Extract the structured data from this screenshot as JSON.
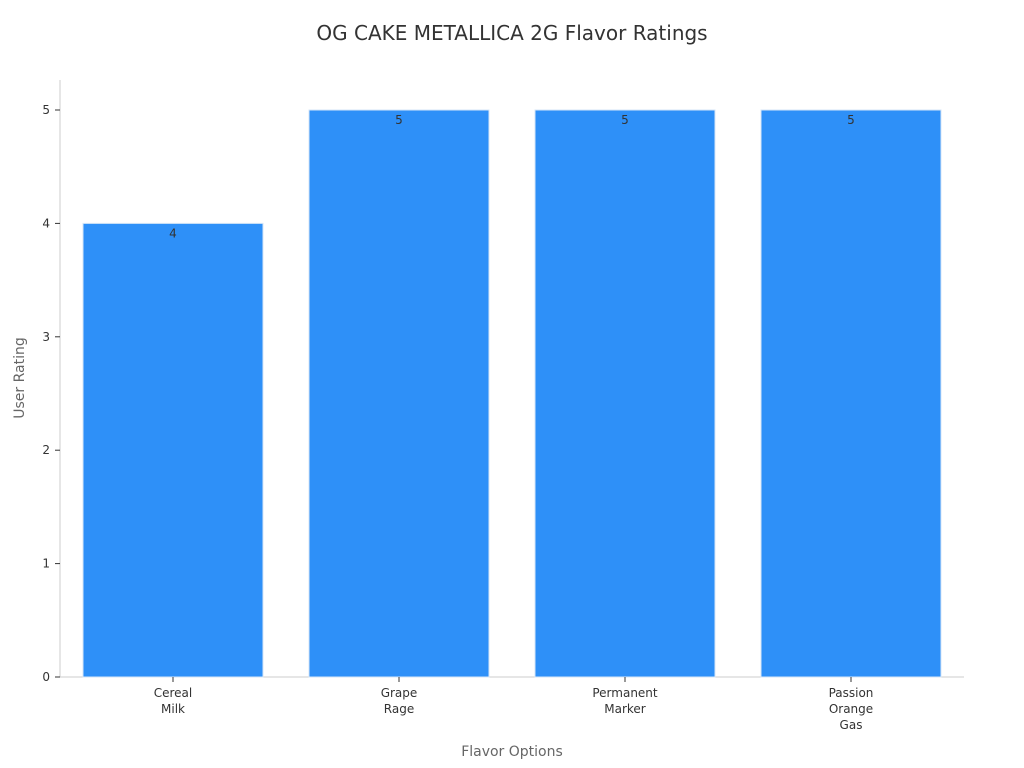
{
  "chart_data": {
    "type": "bar",
    "title": "OG CAKE METALLICA 2G Flavor Ratings",
    "xlabel": "Flavor Options",
    "ylabel": "User Rating",
    "categories": [
      [
        "Cereal",
        "Milk"
      ],
      [
        "Grape",
        "Rage"
      ],
      [
        "Permanent",
        "Marker"
      ],
      [
        "Passion",
        "Orange",
        "Gas"
      ]
    ],
    "values": [
      4,
      5,
      5,
      5
    ],
    "data_labels": [
      "4",
      "5",
      "5",
      "5"
    ],
    "yticks": [
      "0",
      "1",
      "2",
      "3",
      "4",
      "5"
    ],
    "ylim": [
      0,
      5
    ],
    "grid": false,
    "legend": "none",
    "bar_color": "#2e90f8"
  }
}
